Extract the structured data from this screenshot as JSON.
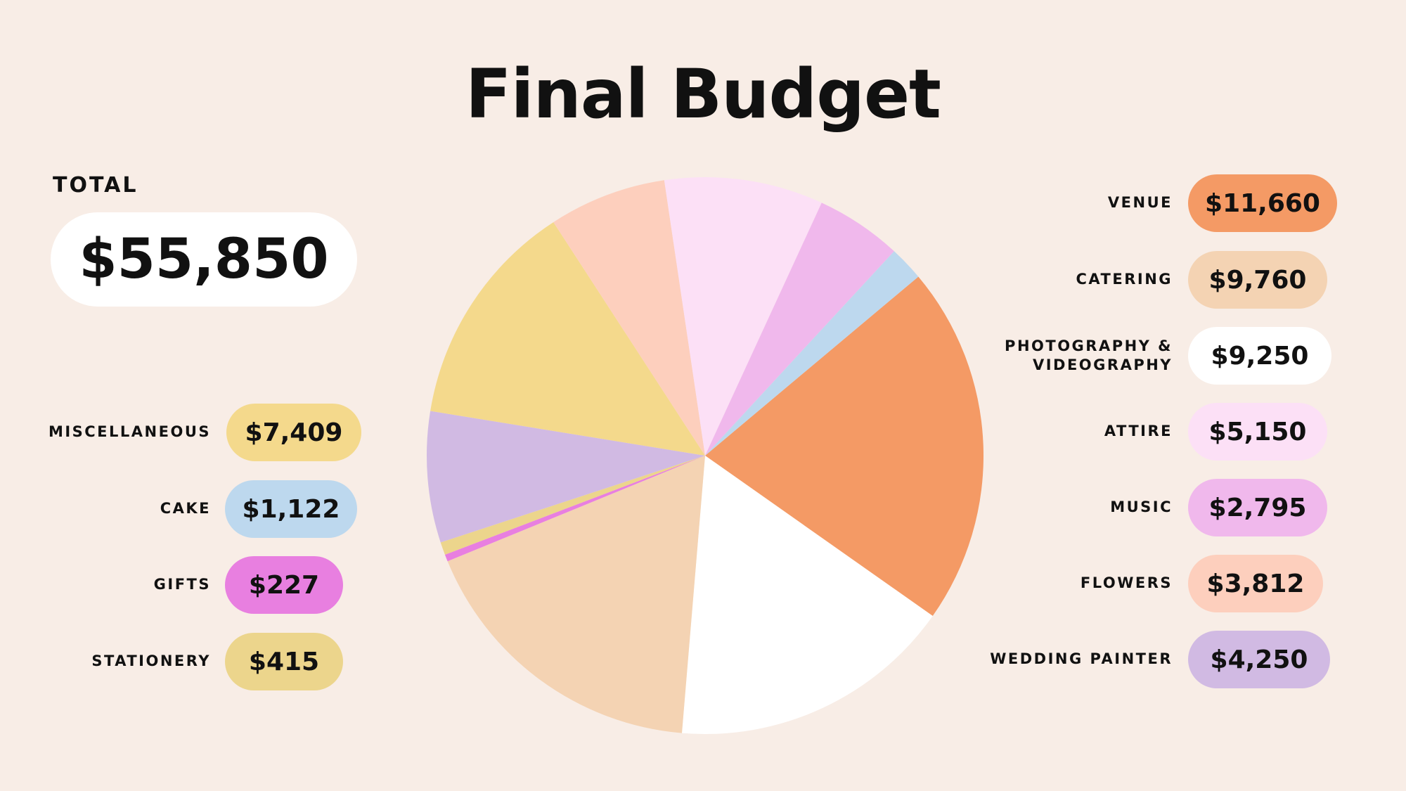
{
  "title": "Final Budget",
  "total": {
    "label": "TOTAL",
    "value": "$55,850"
  },
  "chart_data": {
    "type": "pie",
    "title": "Final Budget",
    "total": 55850,
    "slices": [
      {
        "name": "VENUE",
        "value": 11660,
        "label": "$11,660",
        "color": "#f49a65"
      },
      {
        "name": "PHOTOGRAPHY & VIDEOGRAPHY",
        "value": 9250,
        "label": "$9,250",
        "color": "#ffffff"
      },
      {
        "name": "CATERING",
        "value": 9760,
        "label": "$9,760",
        "color": "#f4d3b3"
      },
      {
        "name": "GIFTS",
        "value": 227,
        "label": "$227",
        "color": "#e87fe0"
      },
      {
        "name": "STATIONERY",
        "value": 415,
        "label": "$415",
        "color": "#ecd58c"
      },
      {
        "name": "WEDDING PAINTER",
        "value": 4250,
        "label": "$4,250",
        "color": "#d1bae3"
      },
      {
        "name": "MISCELLANEOUS",
        "value": 7409,
        "label": "$7,409",
        "color": "#f4d98c"
      },
      {
        "name": "FLOWERS",
        "value": 3812,
        "label": "$3,812",
        "color": "#fdcfbd"
      },
      {
        "name": "ATTIRE",
        "value": 5150,
        "label": "$5,150",
        "color": "#fce0f6"
      },
      {
        "name": "MUSIC",
        "value": 2795,
        "label": "$2,795",
        "color": "#f0b8ec"
      },
      {
        "name": "CAKE",
        "value": 1122,
        "label": "$1,122",
        "color": "#bdd8ee"
      }
    ]
  },
  "legend_right": [
    {
      "name": "VENUE",
      "amount": "$11,660",
      "color": "#f49a65"
    },
    {
      "name": "CATERING",
      "amount": "$9,760",
      "color": "#f4d3b3"
    },
    {
      "name": "PHOTOGRAPHY & VIDEOGRAPHY",
      "amount": "$9,250",
      "color": "#ffffff"
    },
    {
      "name": "ATTIRE",
      "amount": "$5,150",
      "color": "#fce0f6"
    },
    {
      "name": "MUSIC",
      "amount": "$2,795",
      "color": "#f0b8ec"
    },
    {
      "name": "FLOWERS",
      "amount": "$3,812",
      "color": "#fdcfbd"
    },
    {
      "name": "WEDDING PAINTER",
      "amount": "$4,250",
      "color": "#d1bae3"
    }
  ],
  "legend_left": [
    {
      "name": "MISCELLANEOUS",
      "amount": "$7,409",
      "color": "#f4d98c"
    },
    {
      "name": "CAKE",
      "amount": "$1,122",
      "color": "#bdd8ee"
    },
    {
      "name": "GIFTS",
      "amount": "$227",
      "color": "#e87fe0"
    },
    {
      "name": "STATIONERY",
      "amount": "$415",
      "color": "#ecd58c"
    }
  ]
}
